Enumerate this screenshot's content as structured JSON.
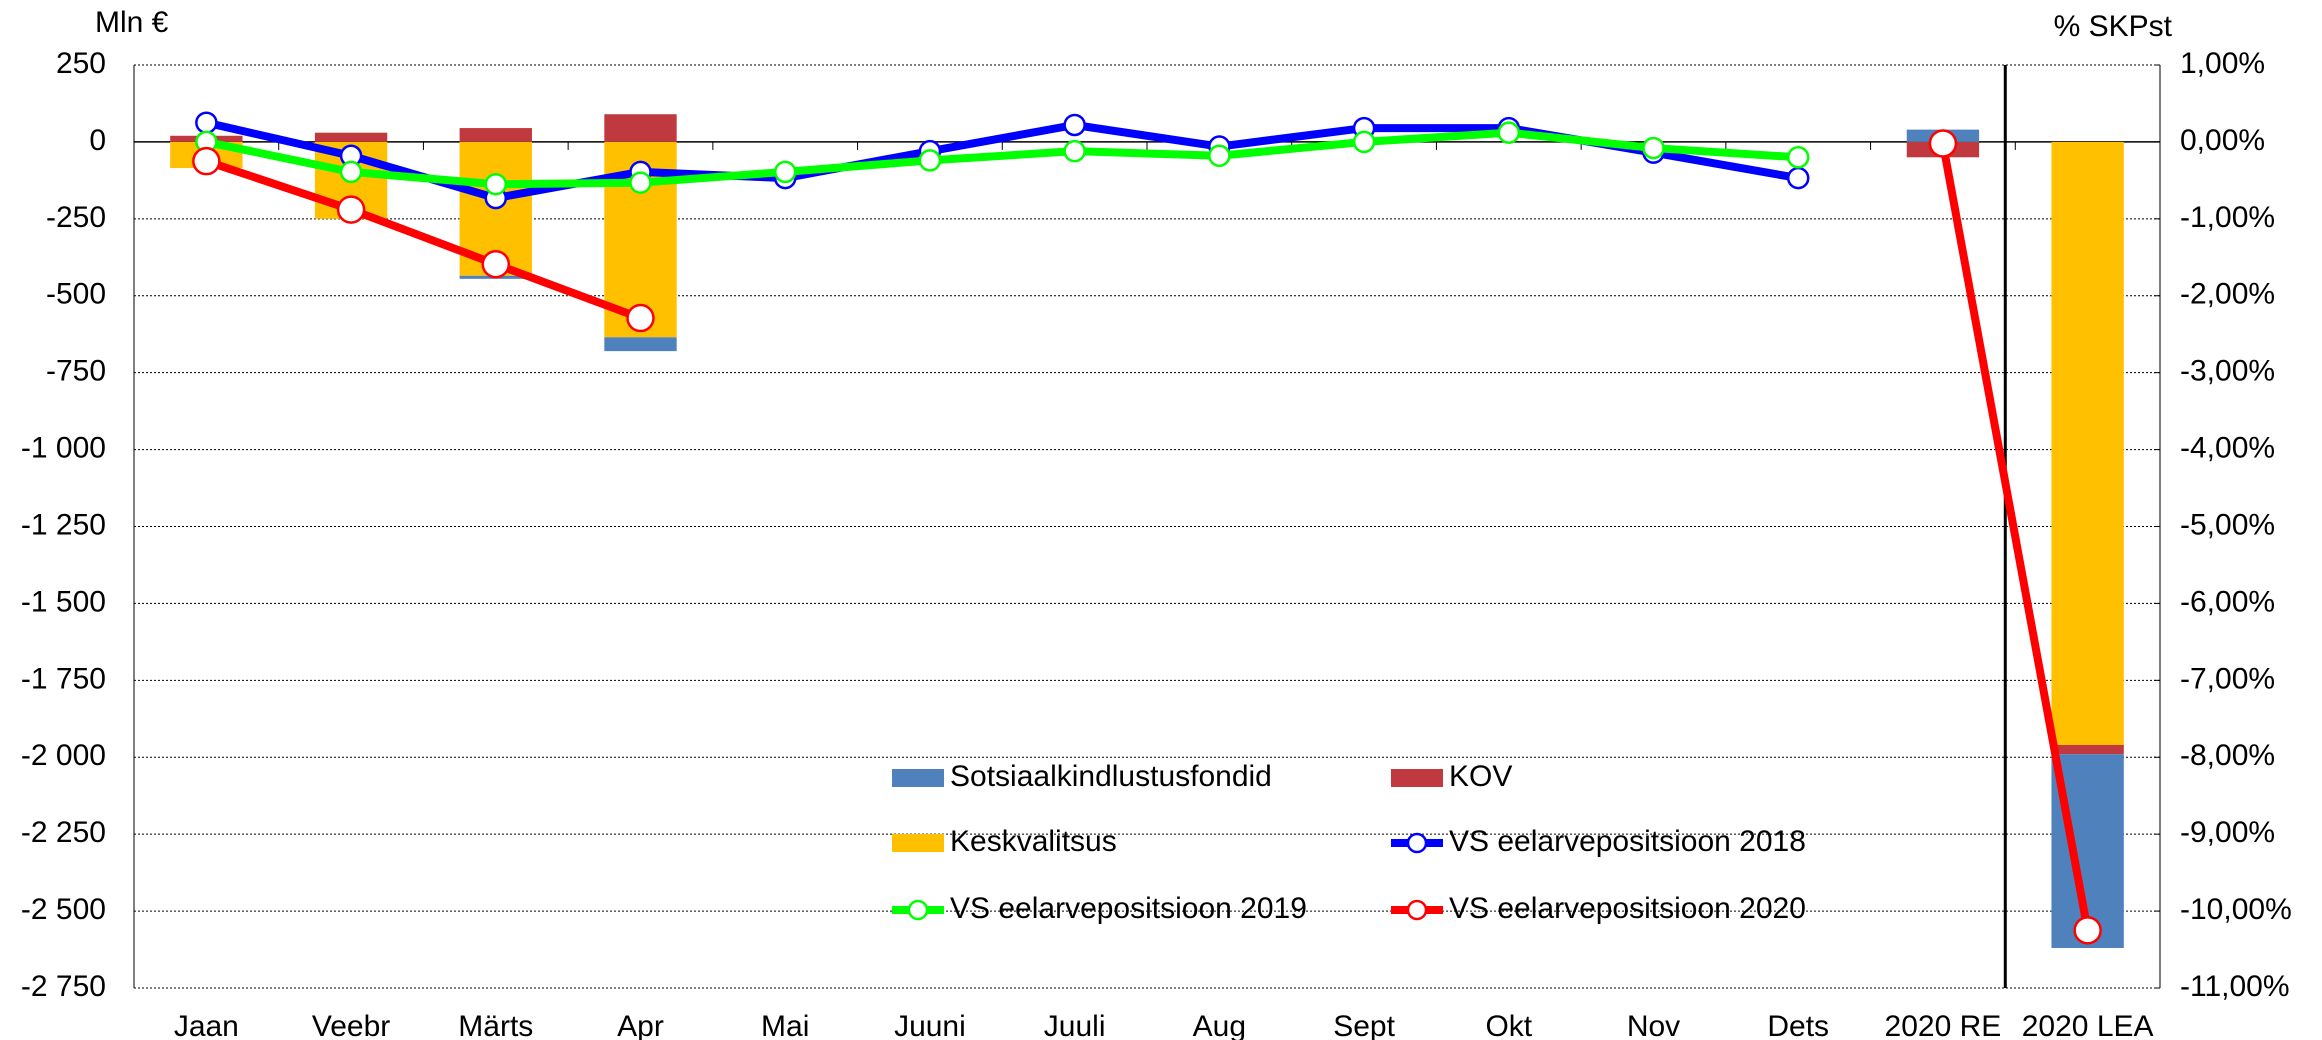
{
  "chart_data": {
    "type": "bar",
    "y_label": "Mln €",
    "y2_label": "% SKPst",
    "categories": [
      "Jaan",
      "Veebr",
      "Märts",
      "Apr",
      "Mai",
      "Juuni",
      "Juuli",
      "Aug",
      "Sept",
      "Okt",
      "Nov",
      "Dets",
      "2020 RE",
      "2020 LEA"
    ],
    "series": [
      {
        "name": "Sotsiaalkindlustusfondid",
        "type": "bar",
        "color": "#4f81bd",
        "values": [
          0,
          0,
          -10,
          -45,
          null,
          null,
          null,
          null,
          null,
          null,
          null,
          null,
          40,
          -630
        ]
      },
      {
        "name": "KOV",
        "type": "bar",
        "color": "#c0393f",
        "values": [
          20,
          30,
          45,
          90,
          null,
          null,
          null,
          null,
          null,
          null,
          null,
          null,
          -50,
          -30
        ]
      },
      {
        "name": "Keskvalitsus",
        "type": "bar",
        "color": "#ffc000",
        "values": [
          -85,
          -250,
          -435,
          -635,
          null,
          null,
          null,
          null,
          null,
          null,
          null,
          null,
          0,
          -1960
        ]
      },
      {
        "name": "VS eelarvepositsioon 2018",
        "type": "line",
        "axis": "y2",
        "color": "#0000ff",
        "values": [
          0.25,
          -0.18,
          -0.73,
          -0.39,
          -0.47,
          -0.12,
          0.22,
          -0.06,
          0.18,
          0.18,
          -0.14,
          -0.47,
          null,
          null
        ]
      },
      {
        "name": "VS eelarvepositsioon 2019",
        "type": "line",
        "axis": "y2",
        "color": "#00ff00",
        "values": [
          0,
          -0.39,
          -0.55,
          -0.53,
          -0.39,
          -0.24,
          -0.12,
          -0.18,
          0,
          0.12,
          -0.08,
          -0.2,
          null,
          null
        ]
      },
      {
        "name": "VS eelarvepositsioon 2020",
        "type": "line",
        "axis": "y2",
        "color": "#ff0000",
        "values": [
          -0.25,
          -0.88,
          -1.59,
          -2.29,
          null,
          null,
          null,
          null,
          null,
          null,
          null,
          null,
          -0.02,
          -10.25
        ]
      }
    ],
    "ylim": [
      -2750,
      250
    ],
    "yticks": [
      250,
      0,
      -250,
      -500,
      -750,
      {
        "value": -1000,
        "label": "-1 000"
      },
      {
        "value": -1250,
        "label": "-1 250"
      },
      {
        "value": -1500,
        "label": "-1 500"
      },
      {
        "value": -1750,
        "label": "-1 750"
      },
      {
        "value": -2000,
        "label": "-2 000"
      },
      {
        "value": -2250,
        "label": "-2 250"
      },
      {
        "value": -2500,
        "label": "-2 500"
      },
      {
        "value": -2750,
        "label": "-2 750"
      }
    ],
    "y2lim": [
      -11,
      1
    ],
    "y2ticks": [
      {
        "value": 1,
        "label": "1,00%"
      },
      {
        "value": 0,
        "label": "0,00%"
      },
      {
        "value": -1,
        "label": "-1,00%"
      },
      {
        "value": -2,
        "label": "-2,00%"
      },
      {
        "value": -3,
        "label": "-3,00%"
      },
      {
        "value": -4,
        "label": "-4,00%"
      },
      {
        "value": -5,
        "label": "-5,00%"
      },
      {
        "value": -6,
        "label": "-6,00%"
      },
      {
        "value": -7,
        "label": "-7,00%"
      },
      {
        "value": -8,
        "label": "-8,00%"
      },
      {
        "value": -9,
        "label": "-9,00%"
      },
      {
        "value": -10,
        "label": "-10,00%"
      },
      {
        "value": -11,
        "label": "-11,00%"
      }
    ],
    "grid": true
  }
}
